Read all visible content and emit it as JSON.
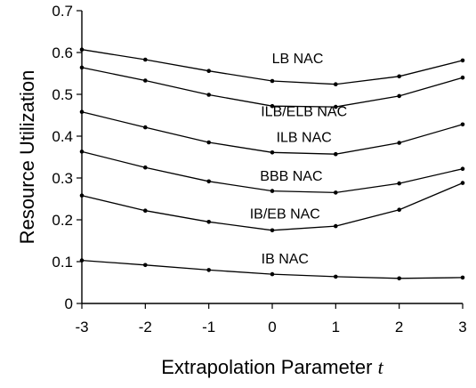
{
  "chart_data": {
    "type": "line",
    "title": "",
    "xlabel": "Extrapolation Parameter",
    "xlabel_symbol": "t",
    "ylabel": "Resource Utilization",
    "x": [
      -3,
      -2,
      -1,
      0,
      1,
      2,
      3
    ],
    "xlim": [
      -3,
      3
    ],
    "ylim": [
      0,
      0.7
    ],
    "xticks": [
      "-3",
      "-2",
      "-1",
      "0",
      "1",
      "2",
      "3"
    ],
    "yticks": [
      "0",
      "0.1",
      "0.2",
      "0.3",
      "0.4",
      "0.5",
      "0.6",
      "0.7"
    ],
    "grid": false,
    "legend": "none (series labeled inline)",
    "line_color": "#000000",
    "series": [
      {
        "name": "LB NAC",
        "values": [
          0.607,
          0.583,
          0.556,
          0.532,
          0.524,
          0.543,
          0.581
        ],
        "label_at": [
          0.4,
          0.574
        ]
      },
      {
        "name": "ILB/ELB NAC",
        "values": [
          0.564,
          0.533,
          0.499,
          0.472,
          0.47,
          0.496,
          0.54
        ],
        "label_at": [
          0.5,
          0.448
        ]
      },
      {
        "name": "ILB NAC",
        "values": [
          0.458,
          0.421,
          0.385,
          0.361,
          0.357,
          0.384,
          0.428
        ],
        "label_at": [
          0.5,
          0.386
        ]
      },
      {
        "name": "BBB NAC",
        "values": [
          0.363,
          0.325,
          0.292,
          0.269,
          0.265,
          0.287,
          0.322
        ],
        "label_at": [
          0.3,
          0.294
        ]
      },
      {
        "name": "IB/EB NAC",
        "values": [
          0.258,
          0.222,
          0.195,
          0.175,
          0.185,
          0.224,
          0.288
        ],
        "label_at": [
          0.2,
          0.203
        ]
      },
      {
        "name": "IB NAC",
        "values": [
          0.103,
          0.092,
          0.08,
          0.07,
          0.064,
          0.06,
          0.062
        ],
        "label_at": [
          0.2,
          0.096
        ]
      }
    ]
  }
}
